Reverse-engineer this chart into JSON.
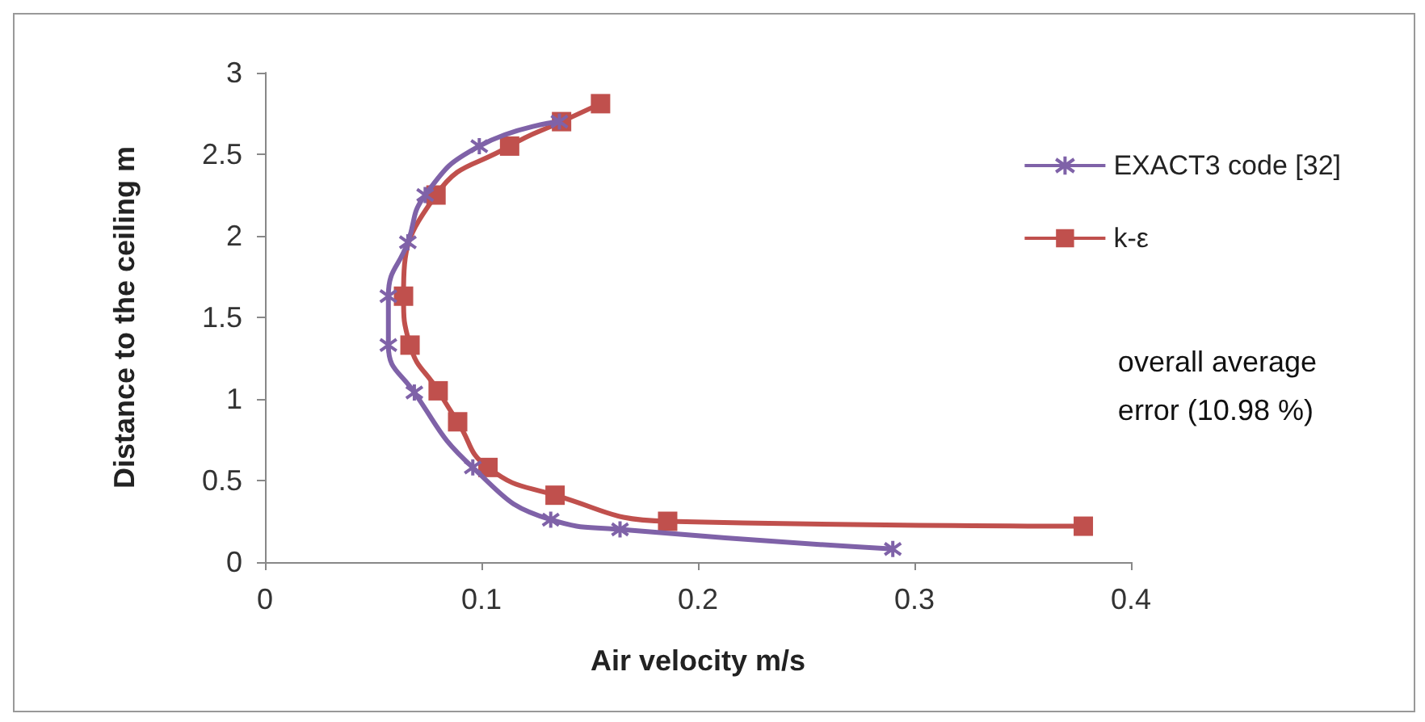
{
  "chart_data": {
    "type": "line",
    "xlabel": "Air velocity m/s",
    "ylabel": "Distance to the ceiling m",
    "xlim": [
      0,
      0.4
    ],
    "xticks": [
      0,
      0.1,
      0.2,
      0.3,
      0.4
    ],
    "ylim": [
      0,
      3
    ],
    "yticks": [
      0,
      0.5,
      1,
      1.5,
      2,
      2.5,
      3
    ],
    "grid": false,
    "legend": "right",
    "annotations": [
      "overall average error (10.98 %)"
    ],
    "series": [
      {
        "name": "EXACT3 code [32]",
        "color": "#7f62a8",
        "marker": "cross",
        "x": [
          0.29,
          0.164,
          0.132,
          0.096,
          0.069,
          0.057,
          0.057,
          0.066,
          0.074,
          0.099,
          0.136
        ],
        "values": [
          0.08,
          0.2,
          0.26,
          0.58,
          1.04,
          1.33,
          1.63,
          1.96,
          2.25,
          2.55,
          2.7
        ]
      },
      {
        "name": "k-ε",
        "color": "#c0504d",
        "marker": "square",
        "x": [
          0.378,
          0.186,
          0.134,
          0.103,
          0.089,
          0.08,
          0.067,
          0.064,
          0.079,
          0.113,
          0.137,
          0.155
        ],
        "values": [
          0.22,
          0.25,
          0.41,
          0.58,
          0.86,
          1.05,
          1.33,
          1.63,
          2.25,
          2.55,
          2.7,
          2.81
        ]
      }
    ]
  }
}
